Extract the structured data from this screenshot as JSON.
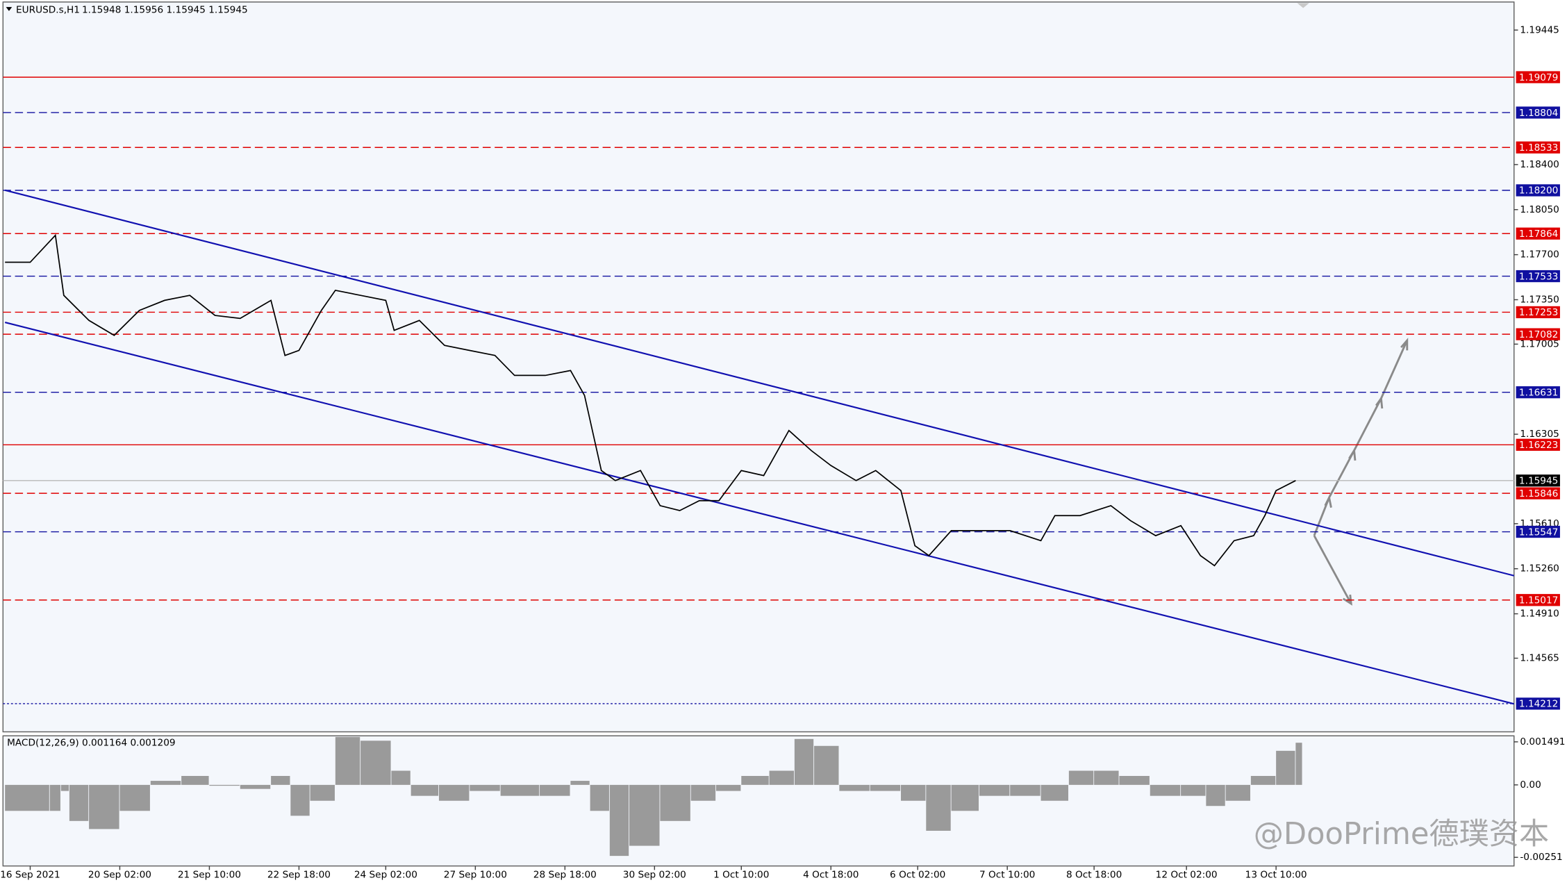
{
  "header": {
    "symbol": "EURUSD.s,H1",
    "quote": "1.15948 1.15956 1.15945 1.15945"
  },
  "chart_data": [
    {
      "type": "line",
      "color": "#000000",
      "x": [
        0,
        9,
        18,
        21,
        30,
        39,
        48,
        57,
        66,
        75,
        84,
        95,
        100,
        105,
        113,
        118,
        127,
        136,
        139,
        148,
        157,
        166,
        175,
        182,
        193,
        202,
        207,
        213,
        218,
        227,
        234,
        241,
        248,
        255,
        263,
        271,
        280,
        288,
        295,
        304,
        311,
        320,
        325,
        330,
        338,
        348,
        359,
        370,
        375,
        384,
        395,
        402,
        411,
        420,
        427,
        432,
        439,
        446,
        450,
        454,
        461
      ],
      "values": [
        1.17641,
        1.17641,
        1.17851,
        1.17384,
        1.17189,
        1.17073,
        1.17267,
        1.17345,
        1.17384,
        1.17228,
        1.17205,
        1.17345,
        1.16917,
        1.16956,
        1.17267,
        1.17423,
        1.17384,
        1.17345,
        1.17112,
        1.17189,
        1.16995,
        1.16956,
        1.16917,
        1.16762,
        1.16762,
        1.168,
        1.16606,
        1.16023,
        1.15945,
        1.16023,
        1.1575,
        1.15712,
        1.15789,
        1.15789,
        1.16023,
        1.15984,
        1.16334,
        1.16178,
        1.16062,
        1.15945,
        1.16023,
        1.15867,
        1.15439,
        1.15362,
        1.15556,
        1.15556,
        1.15556,
        1.15478,
        1.15673,
        1.15673,
        1.1575,
        1.15634,
        1.15517,
        1.15595,
        1.15362,
        1.15284,
        1.15478,
        1.15517,
        1.15673,
        1.15867,
        1.15945
      ],
      "xlim": [
        0,
        539
      ],
      "xticks": [
        {
          "value": 9,
          "label": "16 Sep 2021"
        },
        {
          "value": 41,
          "label": "20 Sep 02:00"
        },
        {
          "value": 73,
          "label": "21 Sep 10:00"
        },
        {
          "value": 105,
          "label": "22 Sep 18:00"
        },
        {
          "value": 136,
          "label": "24 Sep 02:00"
        },
        {
          "value": 168,
          "label": "27 Sep 10:00"
        },
        {
          "value": 200,
          "label": "28 Sep 18:00"
        },
        {
          "value": 232,
          "label": "30 Sep 02:00"
        },
        {
          "value": 263,
          "label": "1 Oct 10:00"
        },
        {
          "value": 295,
          "label": "4 Oct 18:00"
        },
        {
          "value": 326,
          "label": "6 Oct 02:00"
        },
        {
          "value": 358,
          "label": "7 Oct 10:00"
        },
        {
          "value": 389,
          "label": "8 Oct 18:00"
        },
        {
          "value": 422,
          "label": "12 Oct 02:00"
        },
        {
          "value": 454,
          "label": "13 Oct 10:00"
        }
      ],
      "ylim": [
        1.13993,
        1.19663
      ],
      "yticks": [
        1.19445,
        {
          "value": 1.184,
          "label": "1.18400"
        },
        {
          "value": 1.1805,
          "label": "1.18050"
        },
        {
          "value": 1.177,
          "label": "1.17700"
        },
        {
          "value": 1.1735,
          "label": "1.17350"
        },
        1.17005,
        1.16305,
        {
          "value": 1.1561,
          "label": "1.15610"
        },
        {
          "value": 1.1526,
          "label": "1.15260"
        },
        {
          "value": 1.1491,
          "label": "1.14910"
        },
        1.14565
      ],
      "levels": [
        {
          "value": 1.19079,
          "color": "#e00000",
          "style": "solid"
        },
        {
          "value": 1.18804,
          "color": "#1010a0",
          "style": "dashed"
        },
        {
          "value": 1.18533,
          "color": "#e00000",
          "style": "dashed"
        },
        {
          "value": 1.182,
          "label": "1.18200",
          "color": "#1010a0",
          "style": "dashed"
        },
        {
          "value": 1.17864,
          "color": "#e00000",
          "style": "dashed"
        },
        {
          "value": 1.17533,
          "color": "#1010a0",
          "style": "dashed"
        },
        {
          "value": 1.17253,
          "color": "#e00000",
          "style": "dashed"
        },
        {
          "value": 1.17082,
          "color": "#e00000",
          "style": "dashed"
        },
        {
          "value": 1.16631,
          "color": "#1010a0",
          "style": "dashed"
        },
        {
          "value": 1.16223,
          "color": "#e00000",
          "style": "solid"
        },
        {
          "value": 1.15945,
          "color": "#000000",
          "line_color": "#b8b8b8",
          "style": "solid"
        },
        {
          "value": 1.15846,
          "color": "#e00000",
          "style": "dashed"
        },
        {
          "value": 1.15547,
          "color": "#1010a0",
          "style": "dashed"
        },
        {
          "value": 1.15017,
          "color": "#e00000",
          "style": "dashed"
        },
        {
          "value": 1.14212,
          "color": "#1010a0",
          "style": "dotted"
        }
      ],
      "channel_color": "#1010b0",
      "channel": [
        {
          "x": [
            0,
            539
          ],
          "values": [
            1.18201,
            1.15206
          ]
        },
        {
          "x": [
            0,
            539
          ],
          "values": [
            1.17174,
            1.1421
          ]
        }
      ]
    },
    {
      "type": "bar",
      "title": "MACD(12,26,9) 0.001164 0.001209",
      "color": "#9a9a9a",
      "x": [
        0,
        16,
        20,
        23,
        30,
        41,
        52,
        63,
        73,
        84,
        95,
        102,
        109,
        118,
        127,
        138,
        145,
        155,
        166,
        177,
        191,
        202,
        209,
        216,
        223,
        234,
        245,
        254,
        263,
        273,
        282,
        289,
        298,
        309,
        320,
        329,
        338,
        348,
        359,
        370,
        380,
        389,
        398,
        409,
        420,
        429,
        436,
        445,
        454,
        461
      ],
      "values": [
        -0.0009,
        -0.0009,
        -0.00021,
        -0.00125,
        -0.00153,
        -0.0009,
        0.00014,
        0.00031,
        -3e-05,
        -0.00014,
        0.00031,
        -0.00107,
        -0.00055,
        0.00166,
        0.00153,
        0.00049,
        -0.00038,
        -0.00055,
        -0.00021,
        -0.00038,
        -0.00038,
        0.00014,
        -0.0009,
        -0.00246,
        -0.00211,
        -0.00125,
        -0.00055,
        -0.00021,
        0.00031,
        0.00049,
        0.00159,
        0.00135,
        -0.00021,
        -0.00021,
        -0.00055,
        -0.00159,
        -0.0009,
        -0.00038,
        -0.00038,
        -0.00055,
        0.00049,
        0.00049,
        0.00031,
        -0.00038,
        -0.00038,
        -0.00073,
        -0.00055,
        0.00031,
        0.00118,
        0.00146
      ],
      "xlim": [
        0,
        539
      ],
      "ylim": [
        -0.002809,
        0.001699
      ],
      "yticks": [
        0.001491,
        {
          "value": 0,
          "label": "0.00"
        },
        -0.00251
      ]
    }
  ],
  "watermark": "@DooPrime德璞资本"
}
